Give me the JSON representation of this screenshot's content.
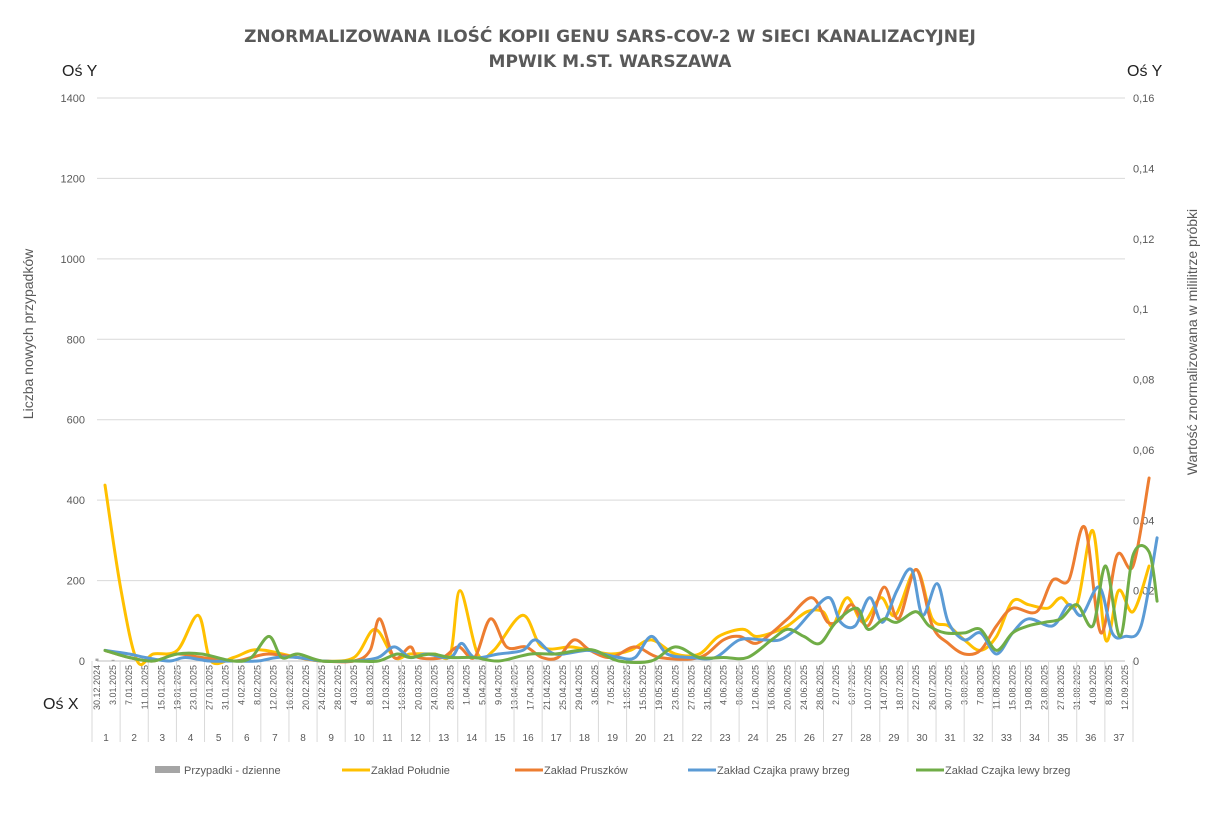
{
  "chart_data": {
    "type": "line",
    "title_line1": "ZNORMALIZOWANA ILOŚĆ KOPII GENU SARS-COV-2 W SIECI KANALIZACYJNEJ",
    "title_line2": "MPWIK M.ST. WARSZAWA",
    "corner_labels": {
      "left_y": "Oś Y",
      "right_y": "Oś Y",
      "x": "Oś X"
    },
    "ylabel_left": "Liczba nowych przypadków",
    "ylabel_right": "Wartość znormalizowana  w mililitrze próbki",
    "ylim_left": [
      0,
      1400
    ],
    "yticks_left": [
      "0",
      "200",
      "400",
      "600",
      "800",
      "1000",
      "1200",
      "1400"
    ],
    "ylim_right": [
      0,
      0.16
    ],
    "yticks_right": [
      "0",
      "0,02",
      "0,04",
      "0,06",
      "0,08",
      "0,1",
      "0,12",
      "0,14",
      "0,16"
    ],
    "grid": true,
    "legend_position": "bottom",
    "x_dates": [
      "30.12.2024",
      "3.01.2025",
      "7.01.2025",
      "11.01.2025",
      "15.01.2025",
      "19.01.2025",
      "23.01.2025",
      "27.01.2025",
      "31.01.2025",
      "4.02.2025",
      "8.02.2025",
      "12.02.2025",
      "16.02.2025",
      "20.02.2025",
      "24.02.2025",
      "28.02.2025",
      "4.03.2025",
      "8.03.2025",
      "12.03.2025",
      "16.03.2025",
      "20.03.2025",
      "24.03.2025",
      "28.03.2025",
      "1.04.2025",
      "5.04.2025",
      "9.04.2025",
      "13.04.2025",
      "17.04.2025",
      "21.04.2025",
      "25.04.2025",
      "29.04.2025",
      "3.05.2025",
      "7.05.2025",
      "11.05.2025",
      "15.05.2025",
      "19.05.2025",
      "23.05.2025",
      "27.05.2025",
      "31.05.2025",
      "4.06.2025",
      "8.06.2025",
      "12.06.2025",
      "16.06.2025",
      "20.06.2025",
      "24.06.2025",
      "28.06.2025",
      "2.07.2025",
      "6.07.2025",
      "10.07.2025",
      "14.07.2025",
      "18.07.2025",
      "22.07.2025",
      "26.07.2025",
      "30.07.2025",
      "3.08.2025",
      "7.08.2025",
      "11.08.2025",
      "15.08.2025",
      "19.08.2025",
      "23.08.2025",
      "27.08.2025",
      "31.08.2025",
      "4.09.2025",
      "8.09.2025",
      "12.09.2025"
    ],
    "weeks": [
      "1",
      "2",
      "3",
      "4",
      "5",
      "6",
      "7",
      "8",
      "9",
      "10",
      "11",
      "12",
      "13",
      "14",
      "15",
      "16",
      "17",
      "18",
      "19",
      "20",
      "21",
      "22",
      "23",
      "24",
      "25",
      "26",
      "27",
      "28",
      "29",
      "30",
      "31",
      "32",
      "33",
      "34",
      "35",
      "36",
      "37"
    ],
    "series": [
      {
        "name": "Przypadki - dzienne",
        "color": "#a5a5a5",
        "axis": "left",
        "style": "bar",
        "values": [
          6,
          3
        ]
      },
      {
        "name": "Zakład Południe",
        "color": "#ffc000",
        "axis": "right",
        "points": [
          [
            0.5,
            0.05
          ],
          [
            1.5,
            0.02
          ],
          [
            2.5,
            0.0
          ],
          [
            3.5,
            0.002
          ],
          [
            5,
            0.003
          ],
          [
            6.3,
            0.013
          ],
          [
            7.1,
            0.0
          ],
          [
            8.5,
            0.001
          ],
          [
            9.6,
            0.003
          ],
          [
            10.5,
            0.003
          ],
          [
            12.5,
            0.001
          ],
          [
            14,
            0.0
          ],
          [
            16,
            0.001
          ],
          [
            17.3,
            0.009
          ],
          [
            18.5,
            0.001
          ],
          [
            19.5,
            0.002
          ],
          [
            21,
            0.002
          ],
          [
            22,
            0.002
          ],
          [
            22.6,
            0.02
          ],
          [
            23.7,
            0.002
          ],
          [
            24.7,
            0.003
          ],
          [
            26.5,
            0.013
          ],
          [
            27.7,
            0.004
          ],
          [
            29.5,
            0.004
          ],
          [
            30.7,
            0.003
          ],
          [
            32,
            0.002
          ],
          [
            33.2,
            0.003
          ],
          [
            34.5,
            0.006
          ],
          [
            36,
            0.002
          ],
          [
            37.5,
            0.002
          ],
          [
            38.7,
            0.007
          ],
          [
            40.2,
            0.009
          ],
          [
            41,
            0.007
          ],
          [
            42,
            0.008
          ],
          [
            43,
            0.01
          ],
          [
            44.2,
            0.014
          ],
          [
            45.2,
            0.014
          ],
          [
            45.8,
            0.01
          ],
          [
            46.7,
            0.018
          ],
          [
            47.7,
            0.011
          ],
          [
            48.8,
            0.018
          ],
          [
            49.7,
            0.013
          ],
          [
            51,
            0.026
          ],
          [
            52,
            0.012
          ],
          [
            53,
            0.01
          ],
          [
            54,
            0.006
          ],
          [
            55,
            0.003
          ],
          [
            56,
            0.007
          ],
          [
            57,
            0.017
          ],
          [
            58,
            0.016
          ],
          [
            59.2,
            0.015
          ],
          [
            60,
            0.018
          ],
          [
            61,
            0.016
          ],
          [
            62,
            0.037
          ],
          [
            62.8,
            0.006
          ],
          [
            63.6,
            0.02
          ],
          [
            64.5,
            0.014
          ],
          [
            65.5,
            0.027
          ]
        ]
      },
      {
        "name": "Zakład Pruszków",
        "color": "#ed7d31",
        "axis": "right",
        "points": [
          [
            0.5,
            0.003
          ],
          [
            2,
            0.001
          ],
          [
            3.5,
            0.0
          ],
          [
            5,
            0.002
          ],
          [
            6.5,
            0.001
          ],
          [
            8.5,
            0.0
          ],
          [
            9.6,
            0.001
          ],
          [
            10.7,
            0.002
          ],
          [
            12.5,
            0.001
          ],
          [
            14,
            0.0
          ],
          [
            16,
            0.0
          ],
          [
            17,
            0.003
          ],
          [
            17.6,
            0.012
          ],
          [
            18.5,
            0.001
          ],
          [
            19.5,
            0.004
          ],
          [
            20,
            0.001
          ],
          [
            21.5,
            0.001
          ],
          [
            22.5,
            0.004
          ],
          [
            23.5,
            0.001
          ],
          [
            24.5,
            0.012
          ],
          [
            25.5,
            0.004
          ],
          [
            26.7,
            0.004
          ],
          [
            27.7,
            0.001
          ],
          [
            28.7,
            0.001
          ],
          [
            29.7,
            0.006
          ],
          [
            30.7,
            0.003
          ],
          [
            32,
            0.001
          ],
          [
            33.5,
            0.004
          ],
          [
            35,
            0.001
          ],
          [
            37.5,
            0.001
          ],
          [
            39,
            0.006
          ],
          [
            40,
            0.007
          ],
          [
            41,
            0.005
          ],
          [
            42,
            0.008
          ],
          [
            43,
            0.012
          ],
          [
            44.5,
            0.018
          ],
          [
            45.5,
            0.011
          ],
          [
            46.3,
            0.012
          ],
          [
            47,
            0.016
          ],
          [
            48,
            0.01
          ],
          [
            49,
            0.021
          ],
          [
            49.9,
            0.012
          ],
          [
            51,
            0.026
          ],
          [
            52,
            0.01
          ],
          [
            53,
            0.005
          ],
          [
            54,
            0.002
          ],
          [
            55,
            0.003
          ],
          [
            56,
            0.01
          ],
          [
            57,
            0.015
          ],
          [
            58.5,
            0.014
          ],
          [
            59.5,
            0.023
          ],
          [
            60.5,
            0.023
          ],
          [
            61.5,
            0.038
          ],
          [
            62.5,
            0.008
          ],
          [
            63.5,
            0.03
          ],
          [
            64.5,
            0.027
          ],
          [
            65.5,
            0.052
          ]
        ]
      },
      {
        "name": "Zakład Czajka prawy brzeg",
        "color": "#5b9bd5",
        "axis": "right",
        "points": [
          [
            0.5,
            0.003
          ],
          [
            2,
            0.002
          ],
          [
            3,
            0.001
          ],
          [
            4.5,
            0.0
          ],
          [
            5.5,
            0.001
          ],
          [
            7,
            0.0
          ],
          [
            8.5,
            0.0
          ],
          [
            10,
            0.0
          ],
          [
            11.2,
            0.001
          ],
          [
            12.5,
            0.001
          ],
          [
            14,
            0.0
          ],
          [
            16,
            0.0
          ],
          [
            17.5,
            0.001
          ],
          [
            18.5,
            0.004
          ],
          [
            19.5,
            0.001
          ],
          [
            20.5,
            0.002
          ],
          [
            22,
            0.001
          ],
          [
            22.7,
            0.005
          ],
          [
            23.5,
            0.001
          ],
          [
            25,
            0.002
          ],
          [
            26.5,
            0.003
          ],
          [
            27.3,
            0.006
          ],
          [
            28.5,
            0.002
          ],
          [
            30.5,
            0.003
          ],
          [
            31.5,
            0.002
          ],
          [
            32.5,
            0.001
          ],
          [
            33.5,
            0.001
          ],
          [
            34.5,
            0.007
          ],
          [
            35.5,
            0.002
          ],
          [
            37,
            0.001
          ],
          [
            38.5,
            0.001
          ],
          [
            40,
            0.006
          ],
          [
            41.5,
            0.006
          ],
          [
            42.5,
            0.006
          ],
          [
            43.5,
            0.009
          ],
          [
            44.5,
            0.014
          ],
          [
            45.6,
            0.018
          ],
          [
            46.3,
            0.011
          ],
          [
            47.2,
            0.01
          ],
          [
            48.1,
            0.018
          ],
          [
            48.9,
            0.011
          ],
          [
            49.8,
            0.02
          ],
          [
            50.7,
            0.026
          ],
          [
            51.4,
            0.013
          ],
          [
            52.3,
            0.022
          ],
          [
            53,
            0.011
          ],
          [
            54,
            0.006
          ],
          [
            55,
            0.008
          ],
          [
            56,
            0.002
          ],
          [
            57,
            0.008
          ],
          [
            58,
            0.012
          ],
          [
            59.5,
            0.01
          ],
          [
            60.5,
            0.016
          ],
          [
            61.3,
            0.013
          ],
          [
            62.4,
            0.021
          ],
          [
            63.2,
            0.008
          ],
          [
            64,
            0.007
          ],
          [
            65,
            0.01
          ],
          [
            66,
            0.035
          ]
        ]
      },
      {
        "name": "Zakład Czajka lewy brzeg",
        "color": "#70ad47",
        "axis": "right",
        "points": [
          [
            0.5,
            0.003
          ],
          [
            2,
            0.001
          ],
          [
            3.5,
            0.0
          ],
          [
            5,
            0.002
          ],
          [
            6.5,
            0.002
          ],
          [
            8.5,
            0.0
          ],
          [
            9.6,
            0.001
          ],
          [
            10.7,
            0.007
          ],
          [
            11.5,
            0.001
          ],
          [
            12.5,
            0.002
          ],
          [
            14,
            0.0
          ],
          [
            16,
            0.0
          ],
          [
            17.5,
            0.0
          ],
          [
            18.7,
            0.002
          ],
          [
            19.5,
            0.001
          ],
          [
            20.8,
            0.002
          ],
          [
            22,
            0.001
          ],
          [
            23.5,
            0.001
          ],
          [
            25,
            0.0
          ],
          [
            27,
            0.002
          ],
          [
            28.5,
            0.002
          ],
          [
            30,
            0.003
          ],
          [
            31,
            0.003
          ],
          [
            32.5,
            0.0
          ],
          [
            34.5,
            0.0
          ],
          [
            36,
            0.004
          ],
          [
            37.5,
            0.001
          ],
          [
            39,
            0.001
          ],
          [
            40.5,
            0.001
          ],
          [
            42,
            0.006
          ],
          [
            43,
            0.009
          ],
          [
            44,
            0.007
          ],
          [
            45,
            0.005
          ],
          [
            46,
            0.011
          ],
          [
            47.3,
            0.015
          ],
          [
            48,
            0.009
          ],
          [
            49,
            0.012
          ],
          [
            49.8,
            0.011
          ],
          [
            51,
            0.014
          ],
          [
            51.8,
            0.01
          ],
          [
            52.8,
            0.008
          ],
          [
            54,
            0.008
          ],
          [
            55,
            0.009
          ],
          [
            56,
            0.003
          ],
          [
            57,
            0.008
          ],
          [
            58,
            0.01
          ],
          [
            59,
            0.011
          ],
          [
            60,
            0.012
          ],
          [
            61,
            0.016
          ],
          [
            62,
            0.01
          ],
          [
            62.8,
            0.027
          ],
          [
            63.7,
            0.007
          ],
          [
            64.5,
            0.03
          ],
          [
            65.5,
            0.031
          ],
          [
            66,
            0.017
          ]
        ]
      }
    ]
  }
}
